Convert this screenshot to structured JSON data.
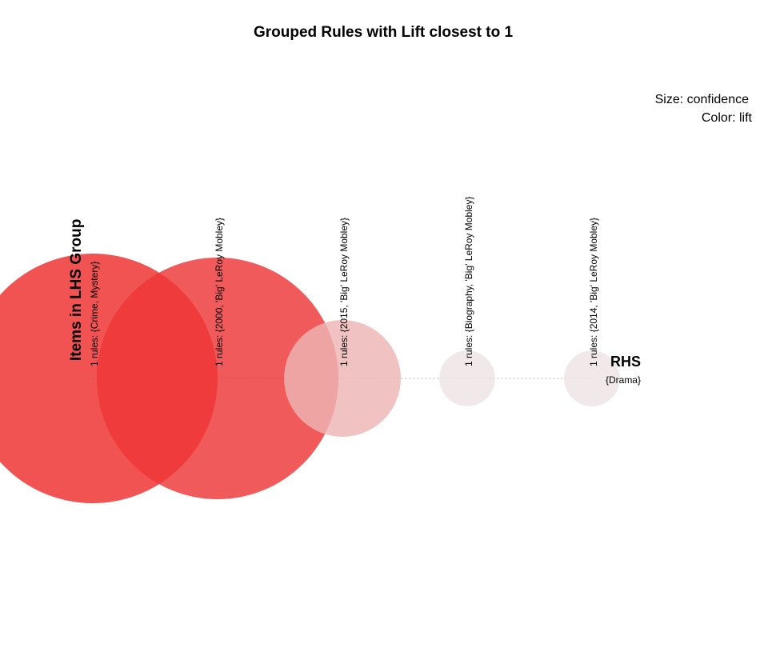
{
  "chart_data": {
    "type": "grouped-matrix",
    "title": "Grouped Rules with Lift closest to 1",
    "legend": {
      "size_label": "Size: confidence",
      "color_label": "Color: lift"
    },
    "x_axis_title": "Items in LHS Group",
    "y_axis_title": "RHS",
    "rhs_items": [
      "{Drama}"
    ],
    "groups": [
      {
        "label": "1 rules: {Crime, Mystery}",
        "support": 0.16,
        "lift": 1.0
      },
      {
        "label": "1 rules: {2000, 'Big' LeRoy Mobley}",
        "support": 0.15,
        "lift": 0.95
      },
      {
        "label": "1 rules: {2015, 'Big' LeRoy Mobley}",
        "support": 0.035,
        "lift": 0.3
      },
      {
        "label": "1 rules: {Biography, 'Big' LeRoy Mobley}",
        "support": 0.008,
        "lift": 0.05
      },
      {
        "label": "1 rules: {2014, 'Big' LeRoy Mobley}",
        "support": 0.008,
        "lift": 0.05
      }
    ],
    "colors": {
      "high": "#ee2c2c",
      "low": "#eeeeee"
    }
  }
}
